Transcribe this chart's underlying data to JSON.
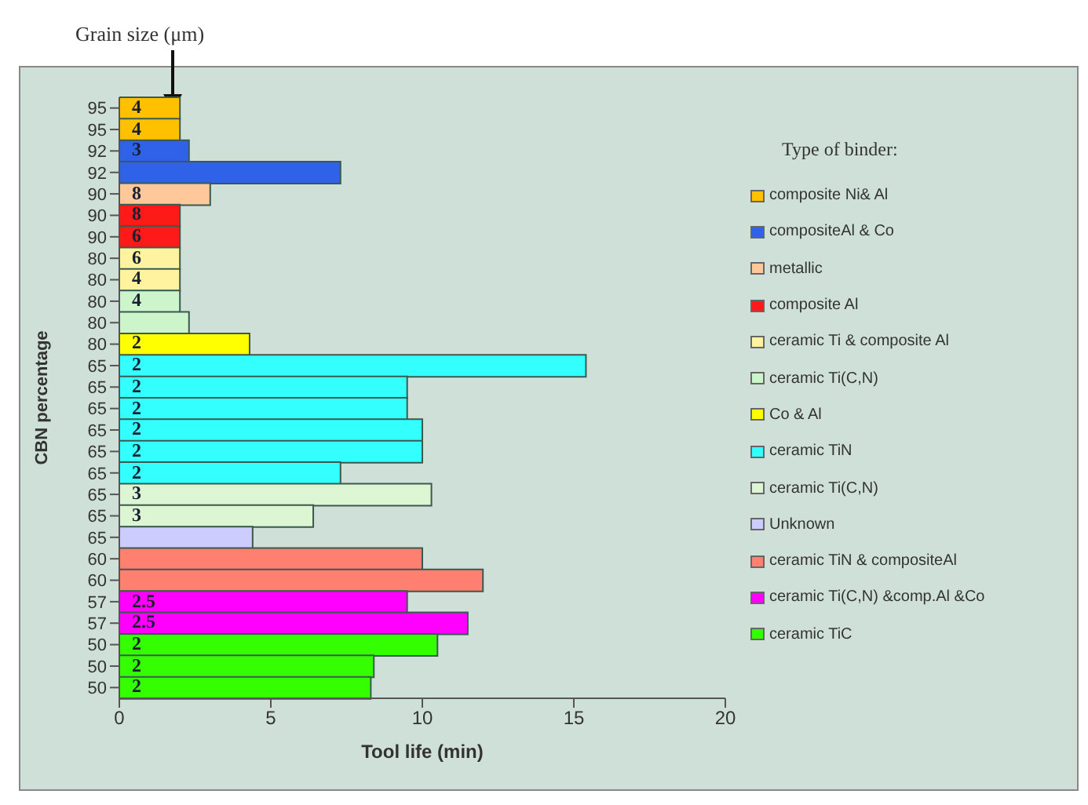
{
  "chart_data": {
    "type": "bar",
    "orientation": "horizontal",
    "stacked": true,
    "xlabel": "Tool life (min)",
    "ylabel": "CBN percentage",
    "legend_title": "Type of binder:",
    "legend": "right",
    "grid": false,
    "annotations": [
      "Grain size (μm)",
      "4",
      "4",
      "3",
      "8",
      "8",
      "6",
      "6",
      "4",
      "4",
      "2",
      "2",
      "2",
      "2",
      "2",
      "2",
      "2",
      "3",
      "3",
      "2.5",
      "2.5",
      "2",
      "2",
      "2"
    ],
    "categories": [
      "95",
      "95",
      "92",
      "92",
      "90",
      "90",
      "90",
      "80",
      "80",
      "80",
      "80",
      "80",
      "65",
      "65",
      "65",
      "65",
      "65",
      "65",
      "65",
      "65",
      "65",
      "60",
      "60",
      "57",
      "57",
      "50",
      "50",
      "50"
    ],
    "xlim": [
      0,
      20
    ],
    "xticks": [
      0,
      5,
      10,
      15,
      20
    ],
    "series": [
      {
        "name": "composite Ni& Al",
        "color": "#ffc000",
        "values": [
          2.0,
          2.0,
          null,
          null,
          null,
          null,
          null,
          null,
          null,
          null,
          null,
          null,
          null,
          null,
          null,
          null,
          null,
          null,
          null,
          null,
          null,
          null,
          null,
          null,
          null,
          null,
          null,
          null
        ]
      },
      {
        "name": "compositeAl & Co",
        "color": "#2f62e8",
        "values": [
          null,
          null,
          2.3,
          7.3,
          null,
          null,
          null,
          null,
          null,
          null,
          null,
          null,
          null,
          null,
          null,
          null,
          null,
          null,
          null,
          null,
          null,
          null,
          null,
          null,
          null,
          null,
          null,
          null
        ]
      },
      {
        "name": "metallic",
        "color": "#ffc89a",
        "values": [
          null,
          null,
          null,
          null,
          3.0,
          null,
          null,
          null,
          null,
          null,
          null,
          null,
          null,
          null,
          null,
          null,
          null,
          null,
          null,
          null,
          null,
          null,
          null,
          null,
          null,
          null,
          null,
          null
        ]
      },
      {
        "name": "composite Al",
        "color": "#ff1a1a",
        "values": [
          null,
          null,
          null,
          null,
          null,
          2.0,
          2.0,
          null,
          null,
          null,
          null,
          null,
          null,
          null,
          null,
          null,
          null,
          null,
          null,
          null,
          null,
          null,
          null,
          null,
          null,
          null,
          null,
          null
        ]
      },
      {
        "name": "ceramic Ti & composite Al",
        "color": "#fff3a0",
        "values": [
          null,
          null,
          null,
          null,
          null,
          null,
          null,
          2.0,
          2.0,
          null,
          null,
          null,
          null,
          null,
          null,
          null,
          null,
          null,
          null,
          null,
          null,
          null,
          null,
          null,
          null,
          null,
          null,
          null
        ]
      },
      {
        "name": "ceramic Ti(C,N)",
        "color": "#ccf5cc",
        "values": [
          null,
          null,
          null,
          null,
          null,
          null,
          null,
          null,
          null,
          2.0,
          2.3,
          null,
          null,
          null,
          null,
          null,
          null,
          null,
          null,
          null,
          null,
          null,
          null,
          null,
          null,
          null,
          null,
          null
        ]
      },
      {
        "name": "Co & Al",
        "color": "#ffff00",
        "values": [
          null,
          null,
          null,
          null,
          null,
          null,
          null,
          null,
          null,
          null,
          null,
          4.3,
          null,
          null,
          null,
          null,
          null,
          null,
          null,
          null,
          null,
          null,
          null,
          null,
          null,
          null,
          null,
          null
        ]
      },
      {
        "name": "ceramic TiN",
        "color": "#33ffff",
        "values": [
          null,
          null,
          null,
          null,
          null,
          null,
          null,
          null,
          null,
          null,
          null,
          null,
          15.4,
          9.5,
          9.5,
          10.0,
          10.0,
          7.3,
          null,
          null,
          null,
          null,
          null,
          null,
          null,
          null,
          null,
          null
        ]
      },
      {
        "name": "ceramic Ti(C,N)",
        "color": "#dcf5d2",
        "values": [
          null,
          null,
          null,
          null,
          null,
          null,
          null,
          null,
          null,
          null,
          null,
          null,
          null,
          null,
          null,
          null,
          null,
          null,
          10.3,
          6.4,
          null,
          null,
          null,
          null,
          null,
          null,
          null,
          null
        ]
      },
      {
        "name": "Unknown",
        "color": "#ccccff",
        "values": [
          null,
          null,
          null,
          null,
          null,
          null,
          null,
          null,
          null,
          null,
          null,
          null,
          null,
          null,
          null,
          null,
          null,
          null,
          null,
          null,
          4.4,
          null,
          null,
          null,
          null,
          null,
          null,
          null
        ]
      },
      {
        "name": "ceramic TiN & compositeAl",
        "color": "#ff8070",
        "values": [
          null,
          null,
          null,
          null,
          null,
          null,
          null,
          null,
          null,
          null,
          null,
          null,
          null,
          null,
          null,
          null,
          null,
          null,
          null,
          null,
          null,
          10.0,
          12.0,
          null,
          null,
          null,
          null,
          null
        ]
      },
      {
        "name": "ceramic Ti(C,N) &comp.Al &Co",
        "color": "#ff00ff",
        "values": [
          null,
          null,
          null,
          null,
          null,
          null,
          null,
          null,
          null,
          null,
          null,
          null,
          null,
          null,
          null,
          null,
          null,
          null,
          null,
          null,
          null,
          null,
          null,
          9.5,
          11.5,
          null,
          null,
          null
        ]
      },
      {
        "name": "ceramic TiC",
        "color": "#33ff00",
        "values": [
          null,
          null,
          null,
          null,
          null,
          null,
          null,
          null,
          null,
          null,
          null,
          null,
          null,
          null,
          null,
          null,
          null,
          null,
          null,
          null,
          null,
          null,
          null,
          null,
          null,
          10.5,
          8.4,
          8.3
        ]
      }
    ]
  }
}
